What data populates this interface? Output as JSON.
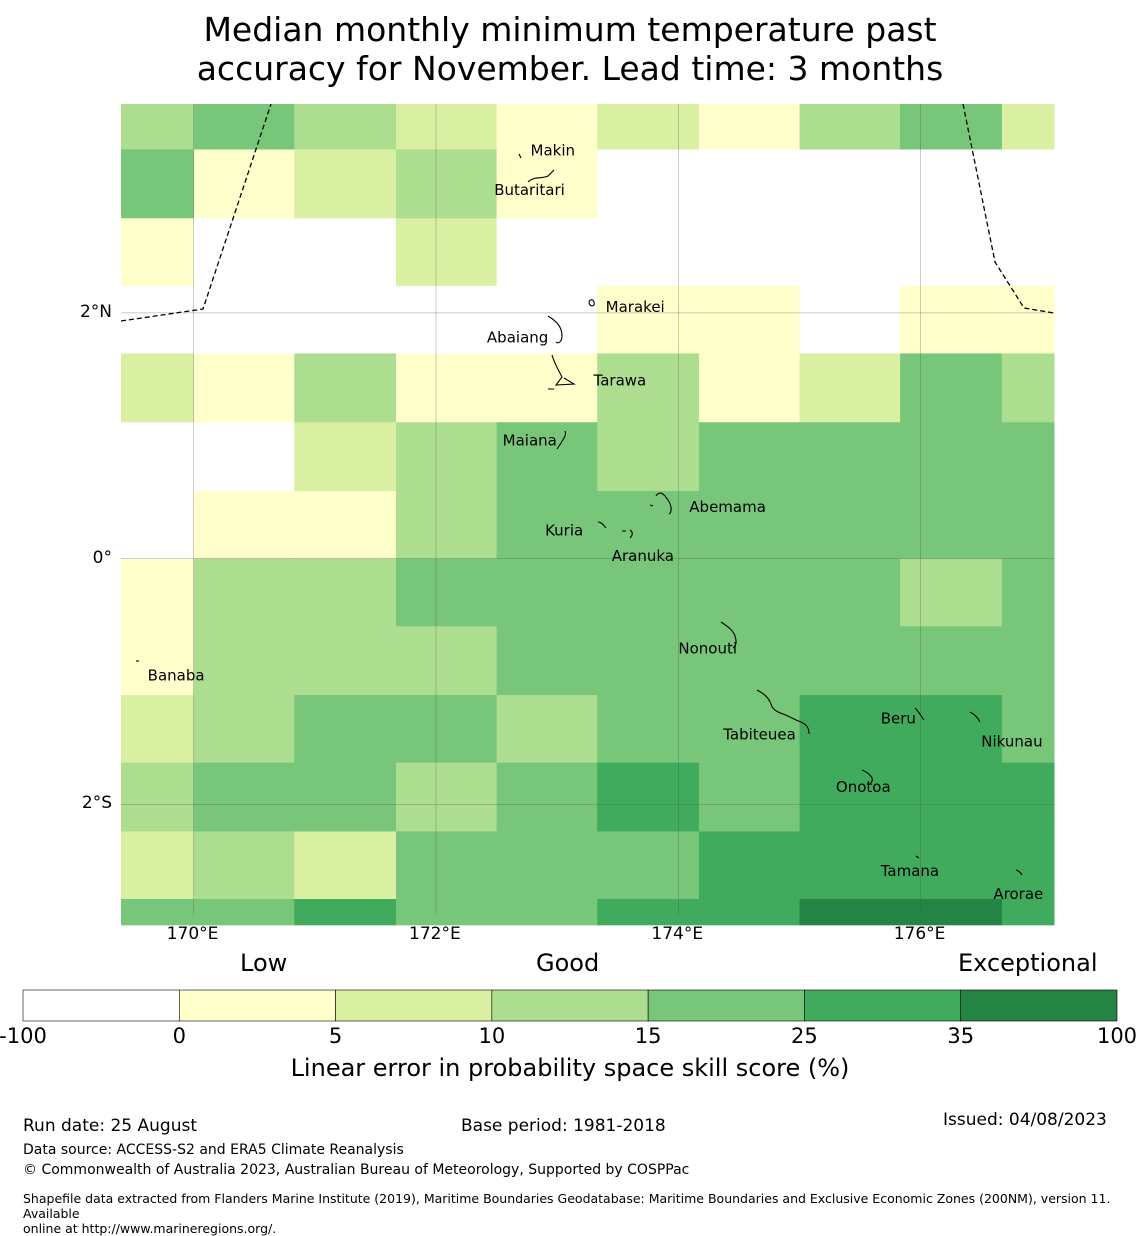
{
  "title_line1": "Median monthly minimum temperature past",
  "title_line2": "accuracy for November. Lead time: 3 months",
  "x_axis": {
    "ticks": [
      {
        "label": "170°E",
        "lon": 170
      },
      {
        "label": "172°E",
        "lon": 172
      },
      {
        "label": "174°E",
        "lon": 174
      },
      {
        "label": "176°E",
        "lon": 176
      }
    ]
  },
  "y_axis": {
    "ticks": [
      {
        "label": "2°N",
        "lat": 2
      },
      {
        "label": "0°",
        "lat": 0
      },
      {
        "label": "2°S",
        "lat": -2
      }
    ]
  },
  "map_extent": {
    "lon_min": 169.4,
    "lon_max": 177.1,
    "lat_min": -2.9,
    "lat_max": 3.7
  },
  "colors": {
    "white": "#ffffff",
    "c0_5": "#ffffcc",
    "c5_10": "#d9f0a3",
    "c10_15": "#addd8e",
    "c15_25": "#78c679",
    "c25_35": "#41ab5d",
    "c35_100": "#238443"
  },
  "grid": {
    "col_lon_edges": [
      169.4,
      170.0,
      170.83,
      171.67,
      172.5,
      173.33,
      174.17,
      175.0,
      175.83,
      176.67,
      177.1
    ],
    "row_lat_edges": [
      3.7,
      3.33,
      2.77,
      2.22,
      1.67,
      1.11,
      0.55,
      0.0,
      -0.55,
      -1.11,
      -1.66,
      -2.22,
      -2.77,
      -2.98
    ],
    "rows": [
      [
        "c10_15",
        "c15_25",
        "c10_15",
        "c5_10",
        "c0_5",
        "c5_10",
        "c0_5",
        "c10_15",
        "c15_25",
        "c5_10"
      ],
      [
        "c15_25",
        "c0_5",
        "c5_10",
        "c10_15",
        "c0_5",
        "white",
        "white",
        "white",
        "white",
        "white"
      ],
      [
        "c0_5",
        "white",
        "white",
        "c5_10",
        "white",
        "white",
        "white",
        "white",
        "white",
        "white"
      ],
      [
        "white",
        "white",
        "white",
        "white",
        "white",
        "c0_5",
        "c0_5",
        "white",
        "c0_5",
        "c0_5"
      ],
      [
        "c5_10",
        "c0_5",
        "c10_15",
        "c0_5",
        "c0_5",
        "c10_15",
        "c0_5",
        "c5_10",
        "c15_25",
        "c10_15"
      ],
      [
        "white",
        "white",
        "c5_10",
        "c10_15",
        "c15_25",
        "c10_15",
        "c15_25",
        "c15_25",
        "c15_25",
        "c15_25"
      ],
      [
        "white",
        "c0_5",
        "c0_5",
        "c10_15",
        "c15_25",
        "c15_25",
        "c15_25",
        "c15_25",
        "c15_25",
        "c15_25"
      ],
      [
        "c0_5",
        "c10_15",
        "c10_15",
        "c15_25",
        "c15_25",
        "c15_25",
        "c15_25",
        "c15_25",
        "c10_15",
        "c15_25"
      ],
      [
        "c0_5",
        "c10_15",
        "c10_15",
        "c10_15",
        "c15_25",
        "c15_25",
        "c15_25",
        "c15_25",
        "c15_25",
        "c15_25"
      ],
      [
        "c5_10",
        "c10_15",
        "c15_25",
        "c15_25",
        "c10_15",
        "c15_25",
        "c15_25",
        "c25_35",
        "c25_35",
        "c15_25"
      ],
      [
        "c10_15",
        "c15_25",
        "c15_25",
        "c10_15",
        "c15_25",
        "c25_35",
        "c15_25",
        "c25_35",
        "c25_35",
        "c25_35"
      ],
      [
        "c5_10",
        "c10_15",
        "c5_10",
        "c15_25",
        "c15_25",
        "c15_25",
        "c25_35",
        "c25_35",
        "c25_35",
        "c25_35"
      ],
      [
        "c15_25",
        "c15_25",
        "c25_35",
        "c15_25",
        "c15_25",
        "c25_35",
        "c25_35",
        "c35_100",
        "c35_100",
        "c25_35"
      ]
    ]
  },
  "places": [
    {
      "name": "Makin",
      "lon": 172.78,
      "lat": 3.32
    },
    {
      "name": "Butaritari",
      "lon": 172.48,
      "lat": 3.0
    },
    {
      "name": "Marakei",
      "lon": 173.4,
      "lat": 2.05
    },
    {
      "name": "Abaiang",
      "lon": 172.42,
      "lat": 1.8
    },
    {
      "name": "Tarawa",
      "lon": 173.3,
      "lat": 1.45
    },
    {
      "name": "Maiana",
      "lon": 172.55,
      "lat": 0.96
    },
    {
      "name": "Abemama",
      "lon": 174.09,
      "lat": 0.42
    },
    {
      "name": "Kuria",
      "lon": 172.9,
      "lat": 0.23
    },
    {
      "name": "Aranuka",
      "lon": 173.45,
      "lat": 0.02
    },
    {
      "name": "Nonouti",
      "lon": 174.0,
      "lat": -0.73
    },
    {
      "name": "Banaba",
      "lon": 169.62,
      "lat": -0.95
    },
    {
      "name": "Beru",
      "lon": 175.67,
      "lat": -1.3
    },
    {
      "name": "Tabiteuea",
      "lon": 174.37,
      "lat": -1.43
    },
    {
      "name": "Nikunau",
      "lon": 176.5,
      "lat": -1.49
    },
    {
      "name": "Onotoa",
      "lon": 175.3,
      "lat": -1.86
    },
    {
      "name": "Tamana",
      "lon": 175.67,
      "lat": -2.54
    },
    {
      "name": "Arorae",
      "lon": 176.6,
      "lat": -2.73
    }
  ],
  "colorbar": {
    "bins": [
      "white",
      "c0_5",
      "c5_10",
      "c10_15",
      "c15_25",
      "c25_35",
      "c35_100"
    ],
    "ticks": [
      "-100",
      "0",
      "5",
      "10",
      "15",
      "25",
      "35",
      "100"
    ],
    "category_low": "Low",
    "category_good": "Good",
    "category_exceptional": "Exceptional",
    "label": "Linear error in probability space skill score (%)"
  },
  "footer": {
    "run_date": "Run date: 25 August",
    "base_period": "Base period: 1981-2018",
    "issued": "Issued: 04/08/2023",
    "data_source": "Data source: ACCESS-S2 and ERA5 Climate Reanalysis",
    "copyright": "© Commonwealth of Australia 2023, Australian Bureau of Meteorology, Supported by COSPPac",
    "shapefile_line1": "Shapefile data extracted from Flanders Marine Institute (2019), Maritime Boundaries Geodatabase: Maritime Boundaries and Exclusive Economic Zones (200NM), version 11. Available",
    "shapefile_line2": "online at http://www.marineregions.org/."
  }
}
